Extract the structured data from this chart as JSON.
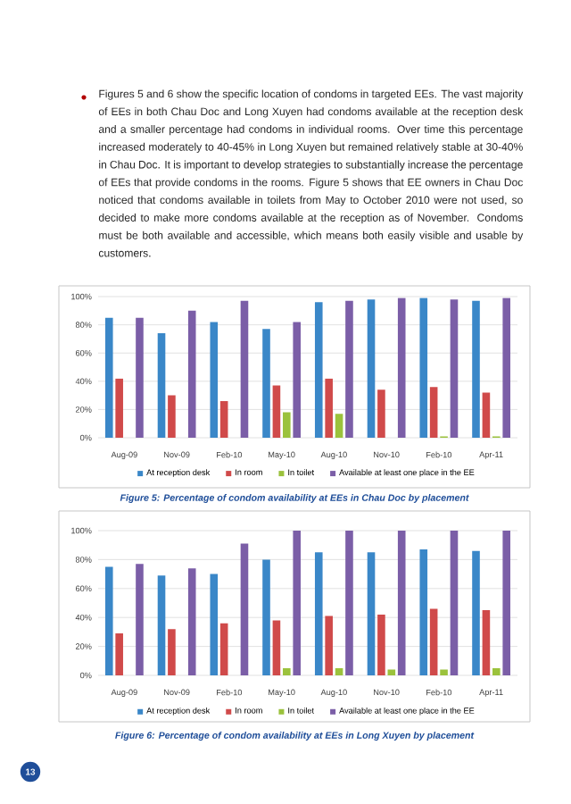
{
  "chart_data": [
    {
      "type": "bar",
      "categories": [
        "Aug-09",
        "Nov-09",
        "Feb-10",
        "May-10",
        "Aug-10",
        "Nov-10",
        "Feb-10",
        "Apr-11"
      ],
      "series": [
        {
          "name": "At reception desk",
          "color": "#3a87c8",
          "values": [
            85,
            74,
            82,
            77,
            96,
            98,
            99,
            97
          ]
        },
        {
          "name": "In room",
          "color": "#d04a4a",
          "values": [
            42,
            30,
            26,
            37,
            42,
            34,
            36,
            32
          ]
        },
        {
          "name": "In toilet",
          "color": "#9bc23c",
          "values": [
            0,
            0,
            0,
            18,
            17,
            0,
            1,
            1
          ]
        },
        {
          "name": "Available at least one place in the EE",
          "color": "#7b5ea7",
          "values": [
            85,
            90,
            97,
            82,
            97,
            99,
            98,
            99
          ]
        }
      ],
      "ylim": [
        0,
        100
      ],
      "yticks": [
        {
          "value": 0,
          "label": "0%"
        },
        {
          "value": 20,
          "label": "20%"
        },
        {
          "value": 40,
          "label": "40%"
        },
        {
          "value": 60,
          "label": "60%"
        },
        {
          "value": 80,
          "label": "80%"
        },
        {
          "value": 100,
          "label": "100%"
        }
      ],
      "grid": "y",
      "legend": "bottom",
      "annotations": [
        "Figures 5 and 6 show the specific location of condoms in targeted EEs. The vast majority of EEs in both Chau Doc and Long Xuyen had condoms available at the reception desk and a smaller percentage had condoms in individual rooms. Over time this percentage increased moderately to 40-45% in Long Xuyen but remained relatively stable at 30-40% in Chau Doc. It is important to develop strategies to substantially increase the percentage of EEs that provide condoms in the rooms. Figure 5 shows that EE owners in Chau Doc noticed that condoms available in toilets from May to October 2010 were not used, so decided to make more condoms available at the reception as of November. Condoms must be both available and accessible, which means both easily visible and usable by customers.",
        "Figure 5: Percentage of condom availability at EEs in Chau Doc by placement"
      ]
    },
    {
      "type": "bar",
      "categories": [
        "Aug-09",
        "Nov-09",
        "Feb-10",
        "May-10",
        "Aug-10",
        "Nov-10",
        "Feb-10",
        "Apr-11"
      ],
      "series": [
        {
          "name": "At reception desk",
          "color": "#3a87c8",
          "values": [
            75,
            69,
            70,
            80,
            85,
            85,
            87,
            86
          ]
        },
        {
          "name": "In room",
          "color": "#d04a4a",
          "values": [
            29,
            32,
            36,
            38,
            41,
            42,
            46,
            45
          ]
        },
        {
          "name": "In toilet",
          "color": "#9bc23c",
          "values": [
            0,
            0,
            0,
            5,
            5,
            4,
            4,
            5
          ]
        },
        {
          "name": "Available at least one place in the EE",
          "color": "#7b5ea7",
          "values": [
            77,
            74,
            91,
            100,
            100,
            100,
            100,
            100
          ]
        }
      ],
      "ylim": [
        0,
        100
      ],
      "yticks": [
        {
          "value": 0,
          "label": "0%"
        },
        {
          "value": 20,
          "label": "20%"
        },
        {
          "value": 40,
          "label": "40%"
        },
        {
          "value": 60,
          "label": "60%"
        },
        {
          "value": 80,
          "label": "80%"
        },
        {
          "value": 100,
          "label": "100%"
        }
      ],
      "grid": "y",
      "legend": "bottom",
      "annotations": [
        "Figure 6: Percentage of condom availability at EEs in Long Xuyen by placement",
        "13"
      ]
    }
  ]
}
